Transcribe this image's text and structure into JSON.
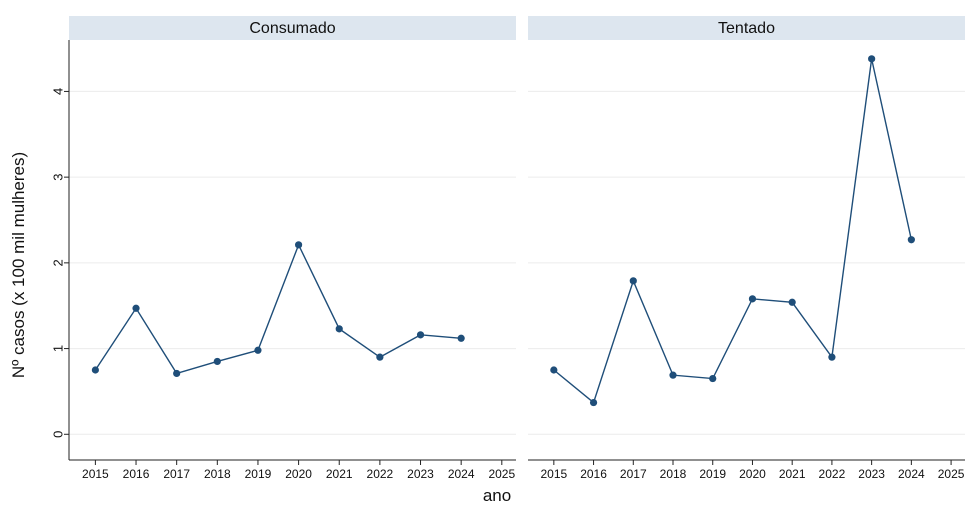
{
  "chart_data": {
    "type": "line",
    "ylabel": "Nº casos (x 100 mil mulheres)",
    "xlabel": "ano",
    "ylim": [
      -0.3,
      4.6
    ],
    "yticks": [
      0,
      1,
      2,
      3,
      4
    ],
    "xticks": [
      2015,
      2016,
      2017,
      2018,
      2019,
      2020,
      2021,
      2022,
      2023,
      2024,
      2025
    ],
    "xlim": [
      2014.4,
      2025.3
    ],
    "grid": true,
    "color": "#1f4e79",
    "panels": [
      {
        "title": "Consumado",
        "x": [
          2015,
          2016,
          2017,
          2018,
          2019,
          2020,
          2021,
          2022,
          2023,
          2024
        ],
        "values": [
          0.75,
          1.47,
          0.71,
          0.85,
          0.98,
          2.21,
          1.23,
          0.9,
          1.16,
          1.12
        ]
      },
      {
        "title": "Tentado",
        "x": [
          2015,
          2016,
          2017,
          2018,
          2019,
          2020,
          2021,
          2022,
          2023,
          2024
        ],
        "values": [
          0.75,
          0.37,
          1.79,
          0.69,
          0.65,
          1.58,
          1.54,
          0.9,
          4.38,
          2.27
        ]
      }
    ]
  }
}
